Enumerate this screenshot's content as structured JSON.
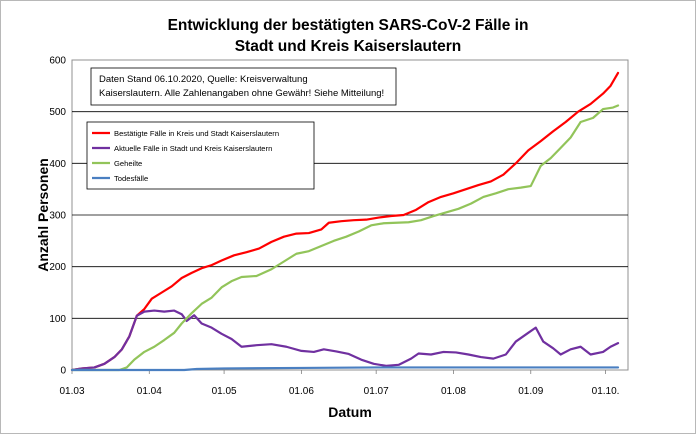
{
  "chart_data": {
    "type": "line",
    "title_line1": "Entwicklung der bestätigten SARS-CoV-2 Fälle in",
    "title_line2": "Stadt und Kreis Kaiserslautern",
    "xlabel": "Datum",
    "ylabel": "Anzahl Personen",
    "annotation_line1": "Daten Stand 06.10.2020, Quelle: Kreisverwaltung",
    "annotation_line2": "Kaiserslautern. Alle Zahlenangaben ohne Gewähr! Siehe Mitteilung!",
    "x_ticks": [
      "01.03",
      "01.04",
      "01.05",
      "01.06",
      "01.07",
      "01.08",
      "01.09",
      "01.10."
    ],
    "y_ticks": [
      "0",
      "100",
      "200",
      "300",
      "400",
      "500",
      "600"
    ],
    "xlim": [
      "2020-03-01",
      "2020-10-10"
    ],
    "ylim": [
      0,
      600
    ],
    "grid": "horizontal",
    "legend_position": "left",
    "series": [
      {
        "name": "Bestätigte Fälle in Kreis und Stadt Kaiserslautern",
        "color": "#ff0000",
        "points": [
          [
            "2020-03-01",
            0
          ],
          [
            "2020-03-05",
            3
          ],
          [
            "2020-03-10",
            5
          ],
          [
            "2020-03-14",
            12
          ],
          [
            "2020-03-18",
            25
          ],
          [
            "2020-03-21",
            40
          ],
          [
            "2020-03-24",
            65
          ],
          [
            "2020-03-27",
            105
          ],
          [
            "2020-03-30",
            118
          ],
          [
            "2020-04-02",
            138
          ],
          [
            "2020-04-06",
            150
          ],
          [
            "2020-04-10",
            162
          ],
          [
            "2020-04-14",
            178
          ],
          [
            "2020-04-18",
            188
          ],
          [
            "2020-04-22",
            197
          ],
          [
            "2020-04-26",
            203
          ],
          [
            "2020-04-30",
            212
          ],
          [
            "2020-05-05",
            222
          ],
          [
            "2020-05-10",
            228
          ],
          [
            "2020-05-15",
            235
          ],
          [
            "2020-05-20",
            248
          ],
          [
            "2020-05-25",
            258
          ],
          [
            "2020-05-30",
            264
          ],
          [
            "2020-06-04",
            265
          ],
          [
            "2020-06-09",
            272
          ],
          [
            "2020-06-12",
            285
          ],
          [
            "2020-06-17",
            288
          ],
          [
            "2020-06-22",
            290
          ],
          [
            "2020-06-27",
            291
          ],
          [
            "2020-07-02",
            295
          ],
          [
            "2020-07-07",
            298
          ],
          [
            "2020-07-12",
            300
          ],
          [
            "2020-07-17",
            310
          ],
          [
            "2020-07-22",
            325
          ],
          [
            "2020-07-27",
            335
          ],
          [
            "2020-08-01",
            342
          ],
          [
            "2020-08-06",
            350
          ],
          [
            "2020-08-11",
            358
          ],
          [
            "2020-08-16",
            365
          ],
          [
            "2020-08-21",
            378
          ],
          [
            "2020-08-26",
            400
          ],
          [
            "2020-08-31",
            425
          ],
          [
            "2020-09-05",
            443
          ],
          [
            "2020-09-10",
            462
          ],
          [
            "2020-09-15",
            480
          ],
          [
            "2020-09-20",
            500
          ],
          [
            "2020-09-25",
            515
          ],
          [
            "2020-09-30",
            535
          ],
          [
            "2020-10-03",
            550
          ],
          [
            "2020-10-06",
            575
          ]
        ]
      },
      {
        "name": "Aktuelle Fälle in Stadt und Kreis Kaiserslautern",
        "color": "#7030a0",
        "points": [
          [
            "2020-03-01",
            0
          ],
          [
            "2020-03-05",
            3
          ],
          [
            "2020-03-10",
            5
          ],
          [
            "2020-03-14",
            12
          ],
          [
            "2020-03-18",
            25
          ],
          [
            "2020-03-21",
            40
          ],
          [
            "2020-03-24",
            65
          ],
          [
            "2020-03-27",
            105
          ],
          [
            "2020-03-30",
            113
          ],
          [
            "2020-04-03",
            115
          ],
          [
            "2020-04-07",
            113
          ],
          [
            "2020-04-11",
            115
          ],
          [
            "2020-04-14",
            108
          ],
          [
            "2020-04-16",
            95
          ],
          [
            "2020-04-19",
            106
          ],
          [
            "2020-04-22",
            90
          ],
          [
            "2020-04-26",
            82
          ],
          [
            "2020-04-30",
            70
          ],
          [
            "2020-05-04",
            60
          ],
          [
            "2020-05-08",
            45
          ],
          [
            "2020-05-14",
            48
          ],
          [
            "2020-05-20",
            50
          ],
          [
            "2020-05-26",
            45
          ],
          [
            "2020-06-01",
            37
          ],
          [
            "2020-06-06",
            35
          ],
          [
            "2020-06-10",
            40
          ],
          [
            "2020-06-15",
            36
          ],
          [
            "2020-06-20",
            31
          ],
          [
            "2020-06-25",
            20
          ],
          [
            "2020-06-30",
            12
          ],
          [
            "2020-07-05",
            8
          ],
          [
            "2020-07-10",
            10
          ],
          [
            "2020-07-15",
            22
          ],
          [
            "2020-07-18",
            32
          ],
          [
            "2020-07-23",
            30
          ],
          [
            "2020-07-28",
            35
          ],
          [
            "2020-08-02",
            34
          ],
          [
            "2020-08-07",
            30
          ],
          [
            "2020-08-12",
            25
          ],
          [
            "2020-08-17",
            22
          ],
          [
            "2020-08-22",
            30
          ],
          [
            "2020-08-26",
            55
          ],
          [
            "2020-08-31",
            72
          ],
          [
            "2020-09-03",
            82
          ],
          [
            "2020-09-06",
            55
          ],
          [
            "2020-09-10",
            42
          ],
          [
            "2020-09-13",
            30
          ],
          [
            "2020-09-17",
            40
          ],
          [
            "2020-09-21",
            45
          ],
          [
            "2020-09-25",
            30
          ],
          [
            "2020-09-30",
            35
          ],
          [
            "2020-10-03",
            45
          ],
          [
            "2020-10-06",
            52
          ]
        ]
      },
      {
        "name": "Geheilte",
        "color": "#92c45a",
        "points": [
          [
            "2020-03-01",
            0
          ],
          [
            "2020-03-20",
            0
          ],
          [
            "2020-03-23",
            5
          ],
          [
            "2020-03-26",
            20
          ],
          [
            "2020-03-30",
            35
          ],
          [
            "2020-04-03",
            45
          ],
          [
            "2020-04-07",
            58
          ],
          [
            "2020-04-11",
            72
          ],
          [
            "2020-04-14",
            90
          ],
          [
            "2020-04-18",
            110
          ],
          [
            "2020-04-22",
            128
          ],
          [
            "2020-04-26",
            140
          ],
          [
            "2020-04-30",
            160
          ],
          [
            "2020-05-04",
            172
          ],
          [
            "2020-05-08",
            180
          ],
          [
            "2020-05-14",
            182
          ],
          [
            "2020-05-20",
            195
          ],
          [
            "2020-05-25",
            210
          ],
          [
            "2020-05-30",
            225
          ],
          [
            "2020-06-04",
            230
          ],
          [
            "2020-06-09",
            240
          ],
          [
            "2020-06-14",
            250
          ],
          [
            "2020-06-19",
            258
          ],
          [
            "2020-06-24",
            268
          ],
          [
            "2020-06-29",
            280
          ],
          [
            "2020-07-04",
            284
          ],
          [
            "2020-07-09",
            285
          ],
          [
            "2020-07-14",
            286
          ],
          [
            "2020-07-19",
            290
          ],
          [
            "2020-07-24",
            298
          ],
          [
            "2020-07-29",
            305
          ],
          [
            "2020-08-03",
            312
          ],
          [
            "2020-08-08",
            322
          ],
          [
            "2020-08-13",
            335
          ],
          [
            "2020-08-18",
            342
          ],
          [
            "2020-08-23",
            350
          ],
          [
            "2020-08-28",
            353
          ],
          [
            "2020-09-01",
            356
          ],
          [
            "2020-09-05",
            395
          ],
          [
            "2020-09-09",
            410
          ],
          [
            "2020-09-13",
            430
          ],
          [
            "2020-09-17",
            450
          ],
          [
            "2020-09-21",
            480
          ],
          [
            "2020-09-26",
            488
          ],
          [
            "2020-09-30",
            505
          ],
          [
            "2020-10-04",
            508
          ],
          [
            "2020-10-06",
            512
          ]
        ]
      },
      {
        "name": "Todesfälle",
        "color": "#4a7fc1",
        "points": [
          [
            "2020-03-01",
            0
          ],
          [
            "2020-04-15",
            0
          ],
          [
            "2020-04-20",
            2
          ],
          [
            "2020-05-01",
            3
          ],
          [
            "2020-06-01",
            4
          ],
          [
            "2020-07-01",
            5
          ],
          [
            "2020-08-01",
            5
          ],
          [
            "2020-09-01",
            5
          ],
          [
            "2020-10-06",
            5
          ]
        ]
      }
    ]
  }
}
